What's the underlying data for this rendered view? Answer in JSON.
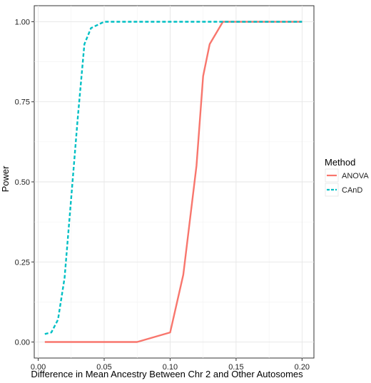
{
  "chart_data": {
    "type": "line",
    "title": "",
    "xlabel": "Difference in Mean Ancestry Between Chr 2 and Other Autosomes",
    "ylabel": "Power",
    "xlim": [
      -0.003,
      0.209
    ],
    "ylim": [
      -0.05,
      1.05
    ],
    "x_ticks": [
      0.0,
      0.05,
      0.1,
      0.15,
      0.2
    ],
    "x_tick_labels": [
      "0.00",
      "0.05",
      "0.10",
      "0.15",
      "0.20"
    ],
    "y_ticks": [
      0.0,
      0.25,
      0.5,
      0.75,
      1.0
    ],
    "y_tick_labels": [
      "0.00",
      "0.25",
      "0.50",
      "0.75",
      "1.00"
    ],
    "grid": true,
    "legend": {
      "title": "Method",
      "position": "right"
    },
    "series": [
      {
        "name": "ANOVA",
        "color": "#F8766D",
        "style": "solid",
        "x": [
          0.005,
          0.01,
          0.02,
          0.03,
          0.04,
          0.05,
          0.06,
          0.075,
          0.1,
          0.11,
          0.12,
          0.125,
          0.13,
          0.14,
          0.15,
          0.16,
          0.175,
          0.2
        ],
        "y": [
          0.0,
          0.0,
          0.0,
          0.0,
          0.0,
          0.0,
          0.0,
          0.0,
          0.03,
          0.21,
          0.55,
          0.83,
          0.93,
          1.0,
          1.0,
          1.0,
          1.0,
          1.0
        ]
      },
      {
        "name": "CAnD",
        "color": "#00BFC4",
        "style": "dashed",
        "x": [
          0.005,
          0.01,
          0.015,
          0.02,
          0.025,
          0.03,
          0.035,
          0.04,
          0.045,
          0.05,
          0.06,
          0.075,
          0.1,
          0.125,
          0.15,
          0.175,
          0.2
        ],
        "y": [
          0.025,
          0.03,
          0.07,
          0.2,
          0.45,
          0.7,
          0.93,
          0.98,
          0.99,
          1.0,
          1.0,
          1.0,
          1.0,
          1.0,
          1.0,
          1.0,
          1.0
        ]
      }
    ]
  }
}
